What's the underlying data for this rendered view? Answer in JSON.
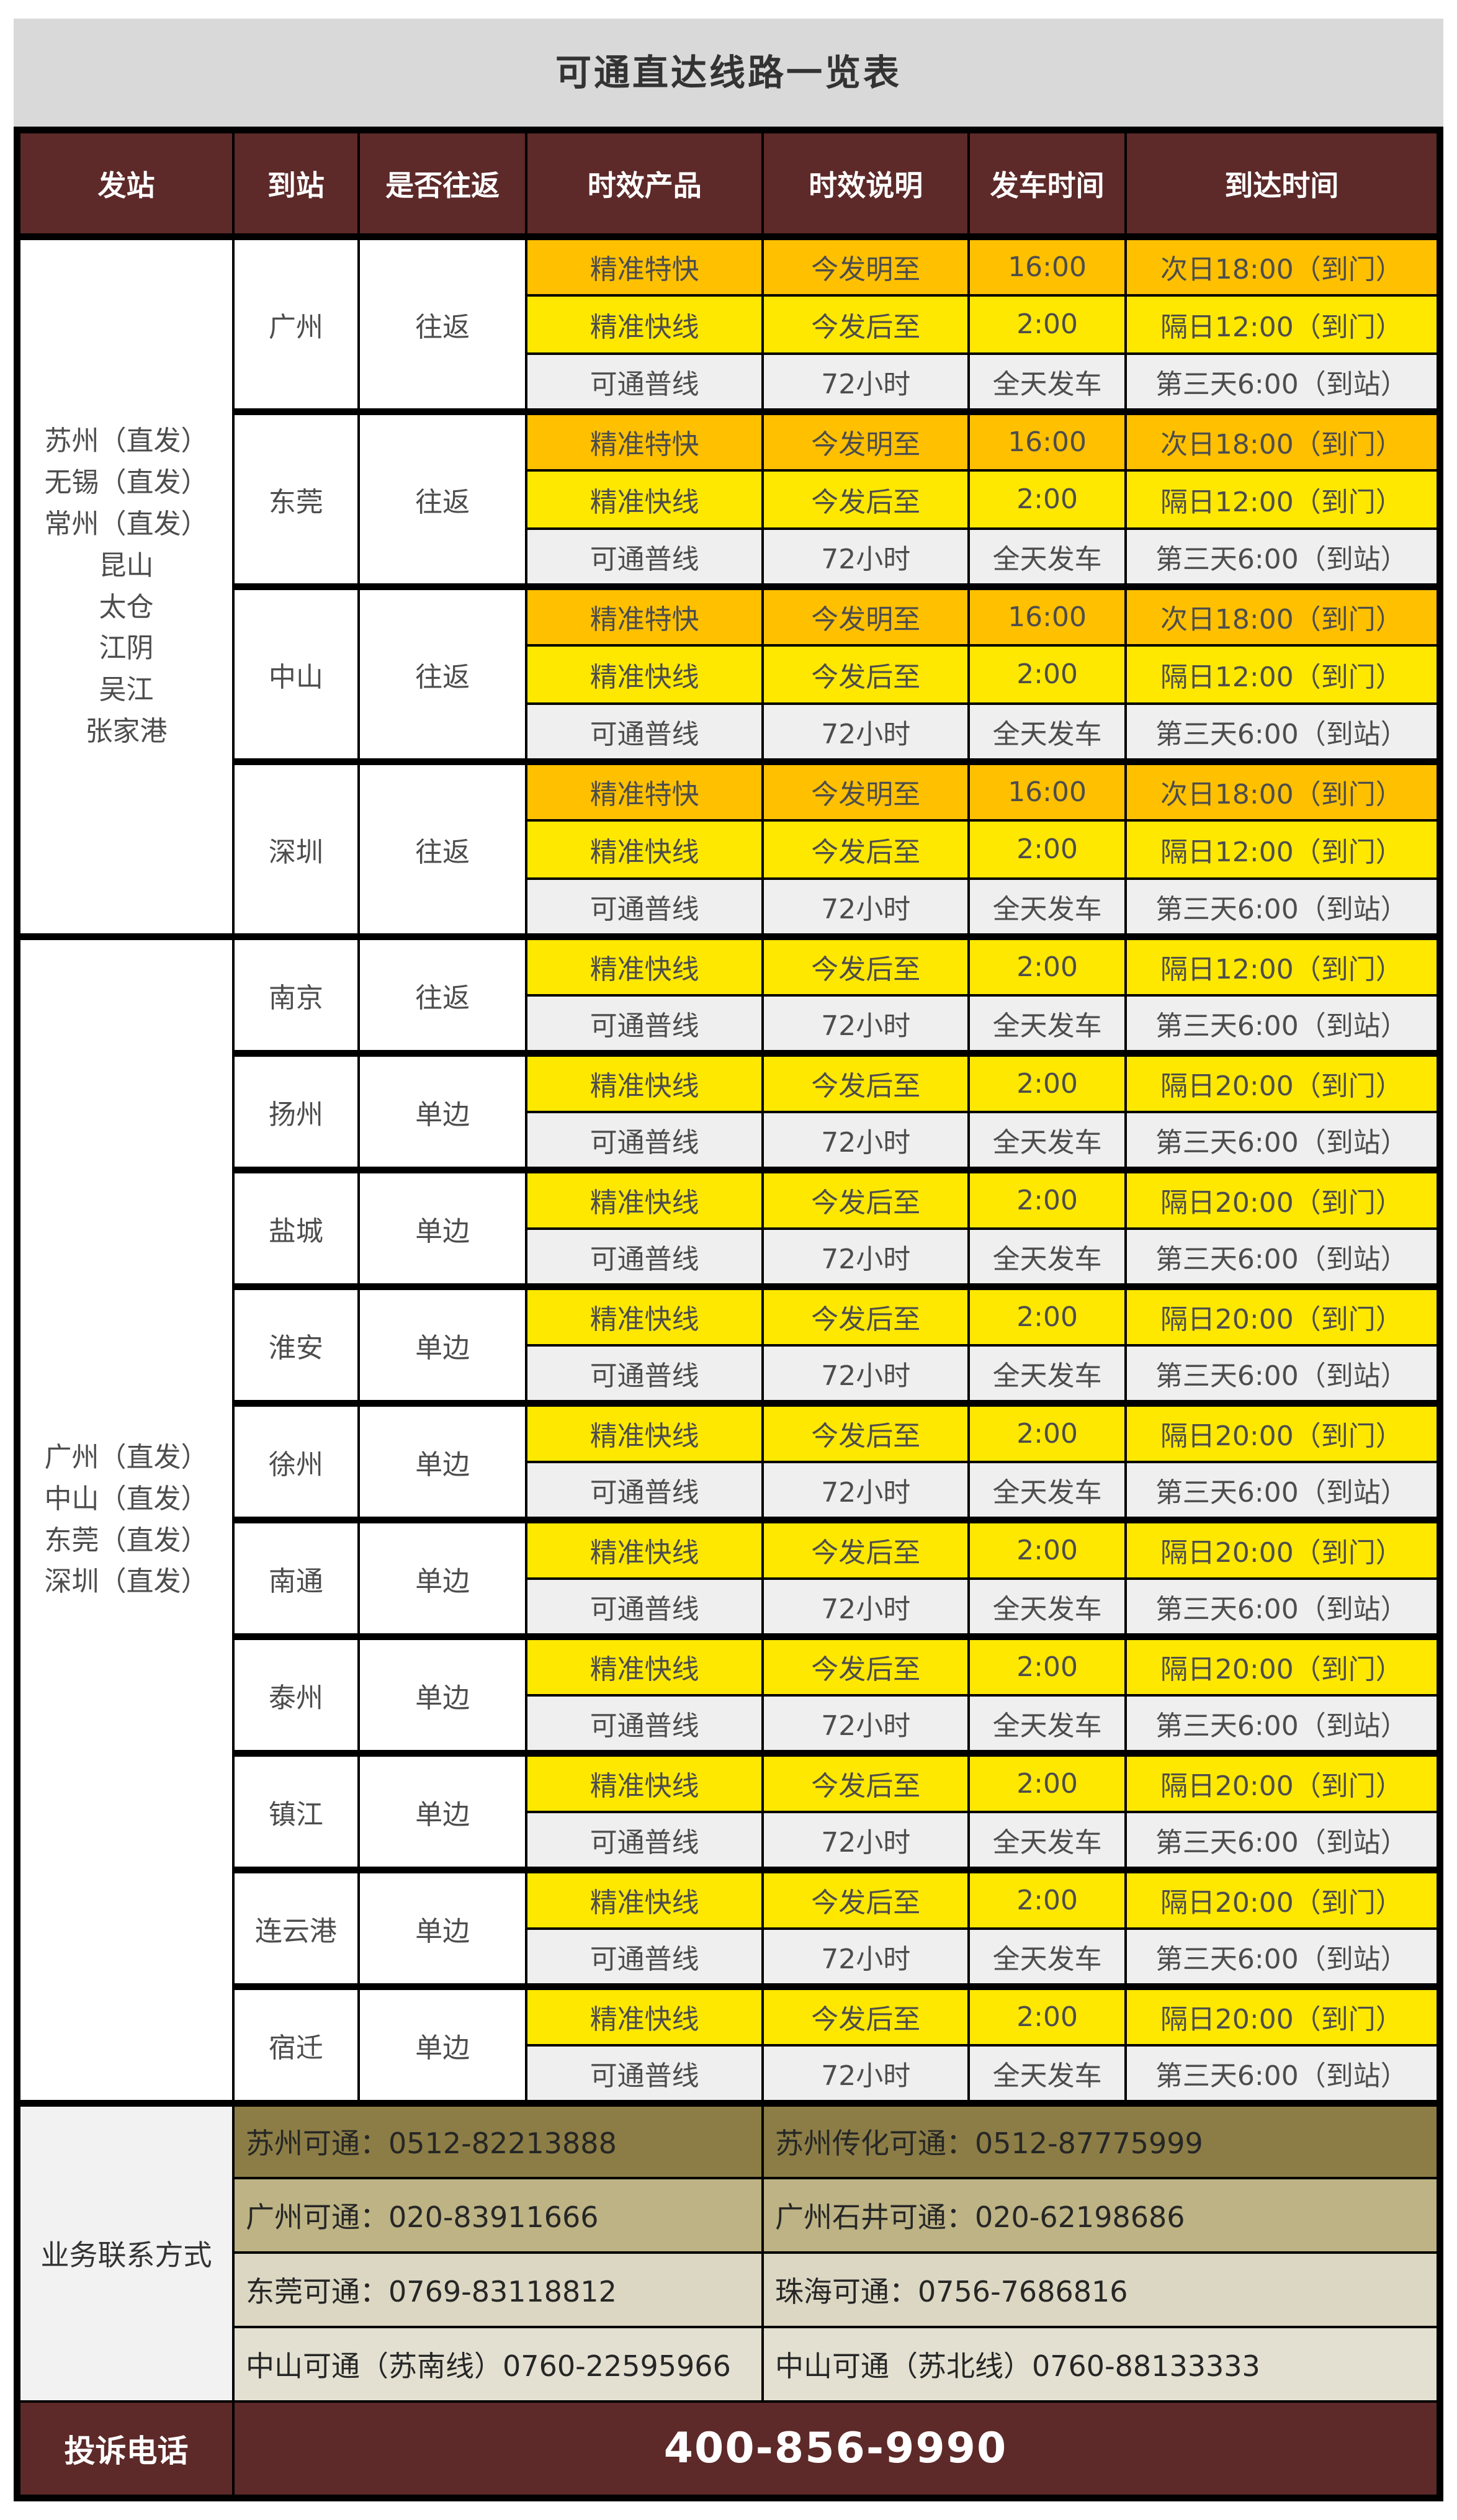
{
  "title": "可通直达线路一览表",
  "columns": [
    "发站",
    "到站",
    "是否往返",
    "时效产品",
    "时效说明",
    "发车时间",
    "到达时间"
  ],
  "colors": {
    "header_bg": "#5D2929",
    "title_bg": "#D9D9D9",
    "express_orange": "#FFC000",
    "fast_yellow": "#FFE800",
    "normal_gray": "#EFEFEF",
    "data_text": "#4D4D4D",
    "border": "#000000",
    "contact_row_bgs": [
      "#8B7D45",
      "#BDB384",
      "#DBD7C2",
      "#E3E0D1"
    ],
    "contact_label_bg": "#F2F2F2",
    "footer_bg": "#5D2929"
  },
  "groups": [
    {
      "origin_lines": [
        "苏州（直发）",
        "无锡（直发）",
        "常州（直发）",
        "昆山",
        "太仓",
        "江阴",
        "吴江",
        "张家港"
      ],
      "destinations": [
        {
          "name": "广州",
          "trip": "往返",
          "rows": [
            {
              "product": "精准特快",
              "desc": "今发明至",
              "depart": "16:00",
              "arrive": "次日18:00（到门）",
              "style": "orange"
            },
            {
              "product": "精准快线",
              "desc": "今发后至",
              "depart": "2:00",
              "arrive": "隔日12:00（到门）",
              "style": "yellow"
            },
            {
              "product": "可通普线",
              "desc": "72小时",
              "depart": "全天发车",
              "arrive": "第三天6:00（到站）",
              "style": "gray"
            }
          ]
        },
        {
          "name": "东莞",
          "trip": "往返",
          "rows": [
            {
              "product": "精准特快",
              "desc": "今发明至",
              "depart": "16:00",
              "arrive": "次日18:00（到门）",
              "style": "orange"
            },
            {
              "product": "精准快线",
              "desc": "今发后至",
              "depart": "2:00",
              "arrive": "隔日12:00（到门）",
              "style": "yellow"
            },
            {
              "product": "可通普线",
              "desc": "72小时",
              "depart": "全天发车",
              "arrive": "第三天6:00（到站）",
              "style": "gray"
            }
          ]
        },
        {
          "name": "中山",
          "trip": "往返",
          "rows": [
            {
              "product": "精准特快",
              "desc": "今发明至",
              "depart": "16:00",
              "arrive": "次日18:00（到门）",
              "style": "orange"
            },
            {
              "product": "精准快线",
              "desc": "今发后至",
              "depart": "2:00",
              "arrive": "隔日12:00（到门）",
              "style": "yellow"
            },
            {
              "product": "可通普线",
              "desc": "72小时",
              "depart": "全天发车",
              "arrive": "第三天6:00（到站）",
              "style": "gray"
            }
          ]
        },
        {
          "name": "深圳",
          "trip": "往返",
          "rows": [
            {
              "product": "精准特快",
              "desc": "今发明至",
              "depart": "16:00",
              "arrive": "次日18:00（到门）",
              "style": "orange"
            },
            {
              "product": "精准快线",
              "desc": "今发后至",
              "depart": "2:00",
              "arrive": "隔日12:00（到门）",
              "style": "yellow"
            },
            {
              "product": "可通普线",
              "desc": "72小时",
              "depart": "全天发车",
              "arrive": "第三天6:00（到站）",
              "style": "gray"
            }
          ]
        }
      ]
    },
    {
      "origin_lines": [
        "广州（直发）",
        "中山（直发）",
        "东莞（直发）",
        "深圳（直发）"
      ],
      "destinations": [
        {
          "name": "南京",
          "trip": "往返",
          "rows": [
            {
              "product": "精准快线",
              "desc": "今发后至",
              "depart": "2:00",
              "arrive": "隔日12:00（到门）",
              "style": "yellow"
            },
            {
              "product": "可通普线",
              "desc": "72小时",
              "depart": "全天发车",
              "arrive": "第三天6:00（到站）",
              "style": "gray"
            }
          ]
        },
        {
          "name": "扬州",
          "trip": "单边",
          "rows": [
            {
              "product": "精准快线",
              "desc": "今发后至",
              "depart": "2:00",
              "arrive": "隔日20:00（到门）",
              "style": "yellow"
            },
            {
              "product": "可通普线",
              "desc": "72小时",
              "depart": "全天发车",
              "arrive": "第三天6:00（到站）",
              "style": "gray"
            }
          ]
        },
        {
          "name": "盐城",
          "trip": "单边",
          "rows": [
            {
              "product": "精准快线",
              "desc": "今发后至",
              "depart": "2:00",
              "arrive": "隔日20:00（到门）",
              "style": "yellow"
            },
            {
              "product": "可通普线",
              "desc": "72小时",
              "depart": "全天发车",
              "arrive": "第三天6:00（到站）",
              "style": "gray"
            }
          ]
        },
        {
          "name": "淮安",
          "trip": "单边",
          "rows": [
            {
              "product": "精准快线",
              "desc": "今发后至",
              "depart": "2:00",
              "arrive": "隔日20:00（到门）",
              "style": "yellow"
            },
            {
              "product": "可通普线",
              "desc": "72小时",
              "depart": "全天发车",
              "arrive": "第三天6:00（到站）",
              "style": "gray"
            }
          ]
        },
        {
          "name": "徐州",
          "trip": "单边",
          "rows": [
            {
              "product": "精准快线",
              "desc": "今发后至",
              "depart": "2:00",
              "arrive": "隔日20:00（到门）",
              "style": "yellow"
            },
            {
              "product": "可通普线",
              "desc": "72小时",
              "depart": "全天发车",
              "arrive": "第三天6:00（到站）",
              "style": "gray"
            }
          ]
        },
        {
          "name": "南通",
          "trip": "单边",
          "rows": [
            {
              "product": "精准快线",
              "desc": "今发后至",
              "depart": "2:00",
              "arrive": "隔日20:00（到门）",
              "style": "yellow"
            },
            {
              "product": "可通普线",
              "desc": "72小时",
              "depart": "全天发车",
              "arrive": "第三天6:00（到站）",
              "style": "gray"
            }
          ]
        },
        {
          "name": "泰州",
          "trip": "单边",
          "rows": [
            {
              "product": "精准快线",
              "desc": "今发后至",
              "depart": "2:00",
              "arrive": "隔日20:00（到门）",
              "style": "yellow"
            },
            {
              "product": "可通普线",
              "desc": "72小时",
              "depart": "全天发车",
              "arrive": "第三天6:00（到站）",
              "style": "gray"
            }
          ]
        },
        {
          "name": "镇江",
          "trip": "单边",
          "rows": [
            {
              "product": "精准快线",
              "desc": "今发后至",
              "depart": "2:00",
              "arrive": "隔日20:00（到门）",
              "style": "yellow"
            },
            {
              "product": "可通普线",
              "desc": "72小时",
              "depart": "全天发车",
              "arrive": "第三天6:00（到站）",
              "style": "gray"
            }
          ]
        },
        {
          "name": "连云港",
          "trip": "单边",
          "rows": [
            {
              "product": "精准快线",
              "desc": "今发后至",
              "depart": "2:00",
              "arrive": "隔日20:00（到门）",
              "style": "yellow"
            },
            {
              "product": "可通普线",
              "desc": "72小时",
              "depart": "全天发车",
              "arrive": "第三天6:00（到站）",
              "style": "gray"
            }
          ]
        },
        {
          "name": "宿迁",
          "trip": "单边",
          "rows": [
            {
              "product": "精准快线",
              "desc": "今发后至",
              "depart": "2:00",
              "arrive": "隔日20:00（到门）",
              "style": "yellow"
            },
            {
              "product": "可通普线",
              "desc": "72小时",
              "depart": "全天发车",
              "arrive": "第三天6:00（到站）",
              "style": "gray"
            }
          ]
        }
      ]
    }
  ],
  "contacts": {
    "label": "业务联系方式",
    "rows": [
      {
        "left": "苏州可通：0512-82213888",
        "right": "苏州传化可通：0512-87775999",
        "bg": "#8B7D45"
      },
      {
        "left": "广州可通：020-83911666",
        "right": "广州石井可通：020-62198686",
        "bg": "#BDB384"
      },
      {
        "left": "东莞可通：0769-83118812",
        "right": "珠海可通：0756-7686816",
        "bg": "#DBD7C2"
      },
      {
        "left": "中山可通（苏南线）0760-22595966",
        "right": "中山可通（苏北线）0760-88133333",
        "bg": "#E3E0D1"
      }
    ]
  },
  "footer": {
    "label": "投诉电话",
    "phone": "400-856-9990"
  }
}
